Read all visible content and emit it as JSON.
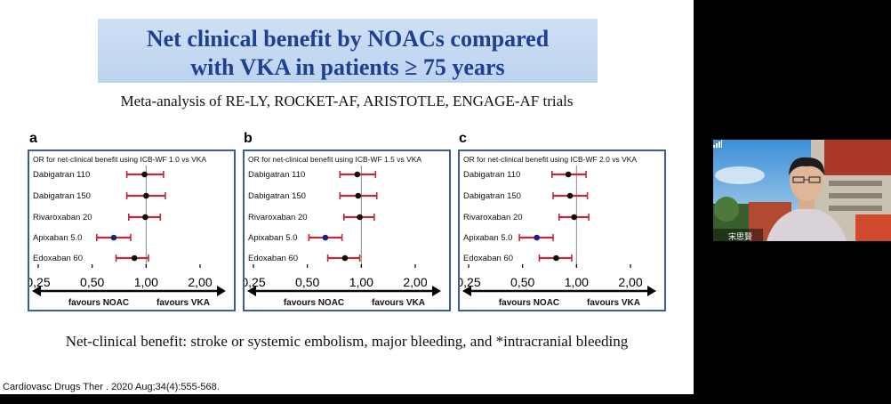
{
  "slide": {
    "title_line1": "Net clinical benefit by NOACs compared",
    "title_line2": "with VKA in patients ≥ 75 years",
    "subtitle": "Meta-analysis of RE-LY, ROCKET-AF, ARISTOTLE, ENGAGE-AF trials",
    "footnote": "Net-clinical benefit: stroke or systemic embolism, major bleeding, and *intracranial bleeding",
    "citation": "Cardiovasc Drugs Ther . 2020 Aug;34(4):555-568.",
    "colors": {
      "title": "#1f3f8f",
      "panel_border": "#3b5e9a",
      "ci": "#c0283b",
      "point_dark": "#111111",
      "point_blue": "#1a237e"
    }
  },
  "chart_data": [
    {
      "type": "forest",
      "panel_label": "a",
      "header": "OR for net-clinical benefit using  ICB-WF  1.0 vs VKA",
      "axis_ticks": [
        "0,25",
        "0,50",
        "1,00",
        "2,00"
      ],
      "xlim": [
        0.25,
        2.0
      ],
      "reference": 1.0,
      "left_label": "favours NOAC",
      "right_label": "favours VKA",
      "rows": [
        {
          "label": "Dabigatran 110",
          "or": 0.98,
          "lo": 0.78,
          "hi": 1.25
        },
        {
          "label": "Dabigatran 150",
          "or": 1.0,
          "lo": 0.78,
          "hi": 1.28
        },
        {
          "label": "Rivaroxaban 20",
          "or": 0.99,
          "lo": 0.8,
          "hi": 1.2
        },
        {
          "label": "Apixaban 5.0",
          "or": 0.66,
          "lo": 0.53,
          "hi": 0.82
        },
        {
          "label": "Edoxaban 60",
          "or": 0.86,
          "lo": 0.68,
          "hi": 1.03
        }
      ]
    },
    {
      "type": "forest",
      "panel_label": "b",
      "header": "OR for net-clinical benefit using  ICB-WF  1.5 vs VKA",
      "axis_ticks": [
        "0,25",
        "0,50",
        "1,00",
        "2,00"
      ],
      "xlim": [
        0.25,
        2.0
      ],
      "reference": 1.0,
      "left_label": "favours NOAC",
      "right_label": "favours VKA",
      "rows": [
        {
          "label": "Dabigatran 110",
          "or": 0.95,
          "lo": 0.76,
          "hi": 1.2
        },
        {
          "label": "Dabigatran 150",
          "or": 0.96,
          "lo": 0.76,
          "hi": 1.22
        },
        {
          "label": "Rivaroxaban 20",
          "or": 0.98,
          "lo": 0.8,
          "hi": 1.18
        },
        {
          "label": "Apixaban 5.0",
          "or": 0.63,
          "lo": 0.51,
          "hi": 0.78
        },
        {
          "label": "Edoxaban 60",
          "or": 0.81,
          "lo": 0.65,
          "hi": 0.98
        }
      ]
    },
    {
      "type": "forest",
      "panel_label": "c",
      "header": "OR for net-clinical benefit using  ICB-WF  2.0 vs VKA",
      "axis_ticks": [
        "0,25",
        "0,50",
        "1,00",
        "2,00"
      ],
      "xlim": [
        0.25,
        2.0
      ],
      "reference": 1.0,
      "left_label": "favours NOAC",
      "right_label": "favours VKA",
      "rows": [
        {
          "label": "Dabigatran 110",
          "or": 0.9,
          "lo": 0.73,
          "hi": 1.13
        },
        {
          "label": "Dabigatran 150",
          "or": 0.92,
          "lo": 0.74,
          "hi": 1.15
        },
        {
          "label": "Rivaroxaban 20",
          "or": 0.97,
          "lo": 0.8,
          "hi": 1.17
        },
        {
          "label": "Apixaban 5.0",
          "or": 0.6,
          "lo": 0.48,
          "hi": 0.74
        },
        {
          "label": "Edoxaban 60",
          "or": 0.77,
          "lo": 0.62,
          "hi": 0.94
        }
      ]
    }
  ],
  "video": {
    "speaker_name": "宋思賢",
    "signal_icon": "signal-bars-icon"
  }
}
